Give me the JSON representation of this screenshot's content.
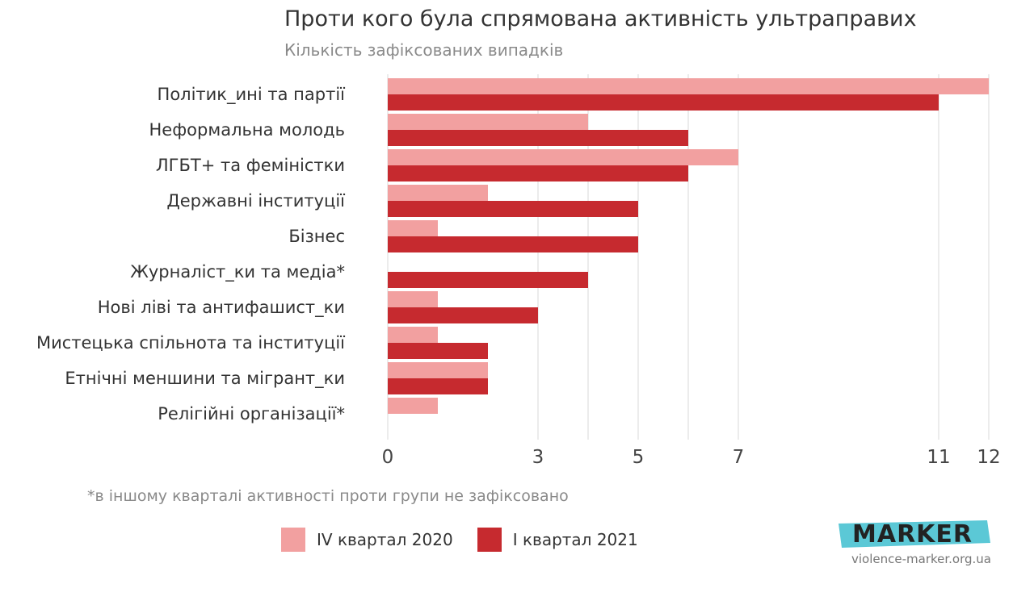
{
  "header": {
    "title": "Проти кого була спрямована активність ультраправих",
    "subtitle": "Кількість зафіксованих випадків"
  },
  "chart_data": {
    "type": "bar",
    "orientation": "horizontal",
    "categories": [
      "Політик_ині та партії",
      "Неформальна молодь",
      "ЛГБТ+ та феміністки",
      "Державні інституції",
      "Бізнес",
      "Журналіст_ки та медіа*",
      "Нові ліві та антифашист_ки",
      "Мистецька спільнота та інституції",
      "Етнічні меншини та мігрант_ки",
      "Релігійні організації*"
    ],
    "series": [
      {
        "name": "IV квартал 2020",
        "color": "#f2a0a0",
        "values": [
          12,
          4,
          7,
          2,
          1,
          0,
          1,
          1,
          2,
          1
        ]
      },
      {
        "name": "I квартал 2021",
        "color": "#c62a2f",
        "values": [
          11,
          6,
          6,
          5,
          5,
          4,
          3,
          2,
          2,
          0
        ]
      }
    ],
    "xticks": [
      "0",
      "3",
      "5",
      "7",
      "11",
      "12"
    ],
    "xlim": [
      0,
      12
    ],
    "grid": true,
    "legend": "bottom"
  },
  "footnote": "*в іншому кварталі активності проти групи не зафіксовано",
  "legend": {
    "items": [
      {
        "label": "IV квартал 2020",
        "color": "#f2a0a0"
      },
      {
        "label": "I квартал 2021",
        "color": "#c62a2f"
      }
    ]
  },
  "branding": {
    "logo_text": "MARKER",
    "logo_color": "#5bc8d6",
    "website": "violence-marker.org.ua"
  }
}
